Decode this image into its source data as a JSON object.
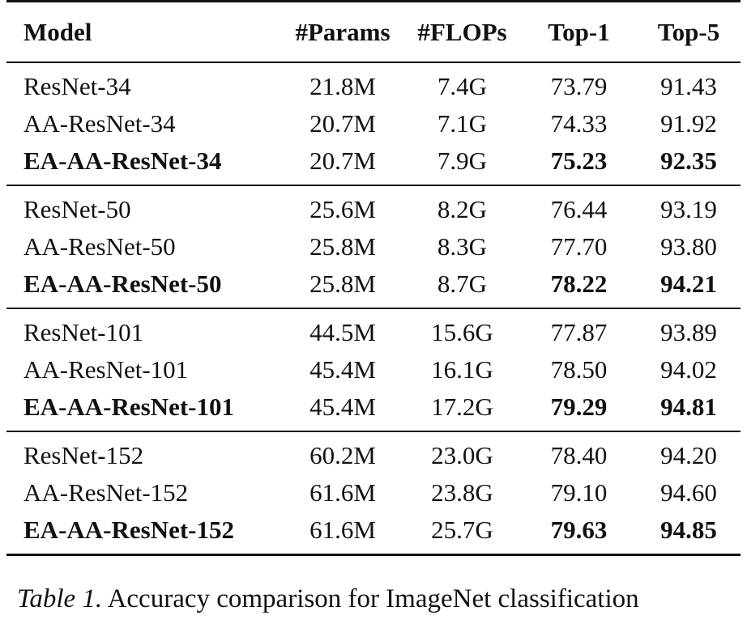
{
  "table": {
    "headers": [
      "Model",
      "#Params",
      "#FLOPs",
      "Top-1",
      "Top-5"
    ],
    "groups": [
      [
        {
          "model": "ResNet-34",
          "params": "21.8M",
          "flops": "7.4G",
          "top1": "73.79",
          "top5": "91.43",
          "bold_model": false,
          "bold_scores": false
        },
        {
          "model": "AA-ResNet-34",
          "params": "20.7M",
          "flops": "7.1G",
          "top1": "74.33",
          "top5": "91.92",
          "bold_model": false,
          "bold_scores": false
        },
        {
          "model": "EA-AA-ResNet-34",
          "params": "20.7M",
          "flops": "7.9G",
          "top1": "75.23",
          "top5": "92.35",
          "bold_model": true,
          "bold_scores": true
        }
      ],
      [
        {
          "model": "ResNet-50",
          "params": "25.6M",
          "flops": "8.2G",
          "top1": "76.44",
          "top5": "93.19",
          "bold_model": false,
          "bold_scores": false
        },
        {
          "model": "AA-ResNet-50",
          "params": "25.8M",
          "flops": "8.3G",
          "top1": "77.70",
          "top5": "93.80",
          "bold_model": false,
          "bold_scores": false
        },
        {
          "model": "EA-AA-ResNet-50",
          "params": "25.8M",
          "flops": "8.7G",
          "top1": "78.22",
          "top5": "94.21",
          "bold_model": true,
          "bold_scores": true
        }
      ],
      [
        {
          "model": "ResNet-101",
          "params": "44.5M",
          "flops": "15.6G",
          "top1": "77.87",
          "top5": "93.89",
          "bold_model": false,
          "bold_scores": false
        },
        {
          "model": "AA-ResNet-101",
          "params": "45.4M",
          "flops": "16.1G",
          "top1": "78.50",
          "top5": "94.02",
          "bold_model": false,
          "bold_scores": false
        },
        {
          "model": "EA-AA-ResNet-101",
          "params": "45.4M",
          "flops": "17.2G",
          "top1": "79.29",
          "top5": "94.81",
          "bold_model": true,
          "bold_scores": true
        }
      ],
      [
        {
          "model": "ResNet-152",
          "params": "60.2M",
          "flops": "23.0G",
          "top1": "78.40",
          "top5": "94.20",
          "bold_model": false,
          "bold_scores": false
        },
        {
          "model": "AA-ResNet-152",
          "params": "61.6M",
          "flops": "23.8G",
          "top1": "79.10",
          "top5": "94.60",
          "bold_model": false,
          "bold_scores": false
        },
        {
          "model": "EA-AA-ResNet-152",
          "params": "61.6M",
          "flops": "25.7G",
          "top1": "79.63",
          "top5": "94.85",
          "bold_model": true,
          "bold_scores": true
        }
      ]
    ]
  },
  "caption": {
    "label": "Table 1.",
    "text": "Accuracy comparison for ImageNet classification"
  }
}
